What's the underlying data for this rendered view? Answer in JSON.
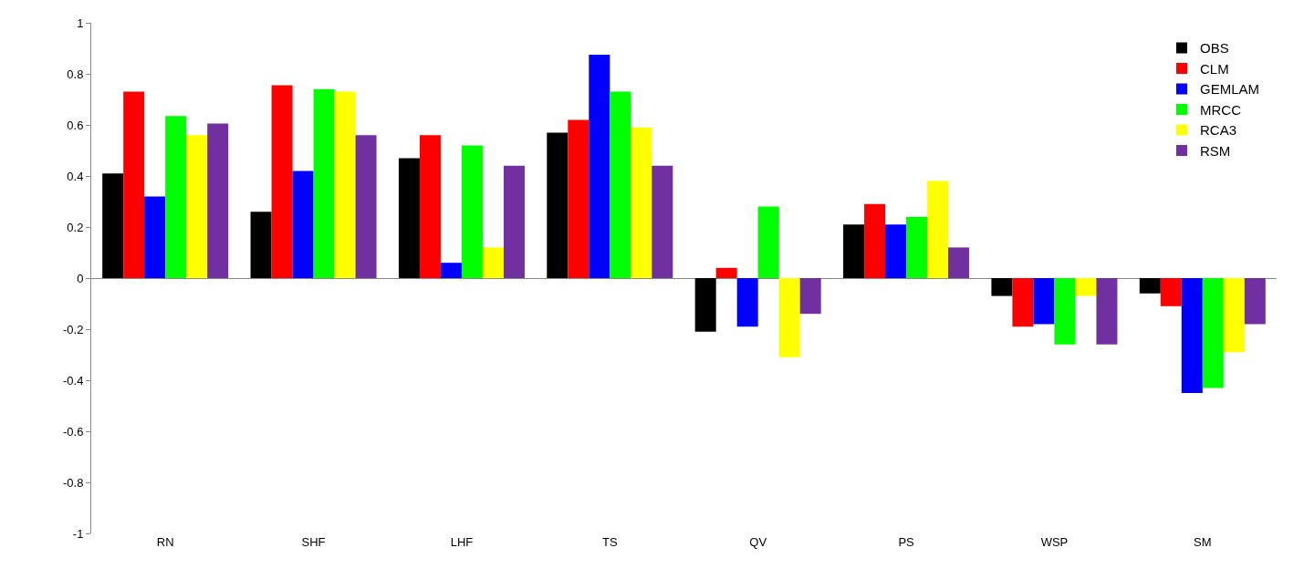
{
  "chart_data": {
    "type": "bar",
    "categories": [
      "RN",
      "SHF",
      "LHF",
      "TS",
      "QV",
      "PS",
      "WSP",
      "SM"
    ],
    "series": [
      {
        "name": "OBS",
        "color": "#000000",
        "values": [
          0.41,
          0.26,
          0.47,
          0.57,
          -0.21,
          0.21,
          -0.07,
          -0.06
        ]
      },
      {
        "name": "CLM",
        "color": "#ff0000",
        "values": [
          0.73,
          0.755,
          0.56,
          0.62,
          0.04,
          0.29,
          -0.19,
          -0.11
        ]
      },
      {
        "name": "GEMLAM",
        "color": "#0000ff",
        "values": [
          0.32,
          0.42,
          0.06,
          0.875,
          -0.19,
          0.21,
          -0.18,
          -0.45
        ]
      },
      {
        "name": "MRCC",
        "color": "#00ff00",
        "values": [
          0.635,
          0.74,
          0.52,
          0.73,
          0.28,
          0.24,
          -0.26,
          -0.43
        ]
      },
      {
        "name": "RCA3",
        "color": "#ffff00",
        "values": [
          0.56,
          0.73,
          0.12,
          0.59,
          -0.31,
          0.38,
          -0.07,
          -0.29
        ]
      },
      {
        "name": "RSM",
        "color": "#7030a0",
        "values": [
          0.605,
          0.56,
          0.44,
          0.44,
          -0.14,
          0.12,
          -0.26,
          -0.18
        ]
      }
    ],
    "ylim": [
      -1,
      1
    ],
    "yticks": [
      -1,
      -0.8,
      -0.6,
      -0.4,
      -0.2,
      0,
      0.2,
      0.4,
      0.6,
      0.8,
      1
    ],
    "legend": "top right"
  }
}
